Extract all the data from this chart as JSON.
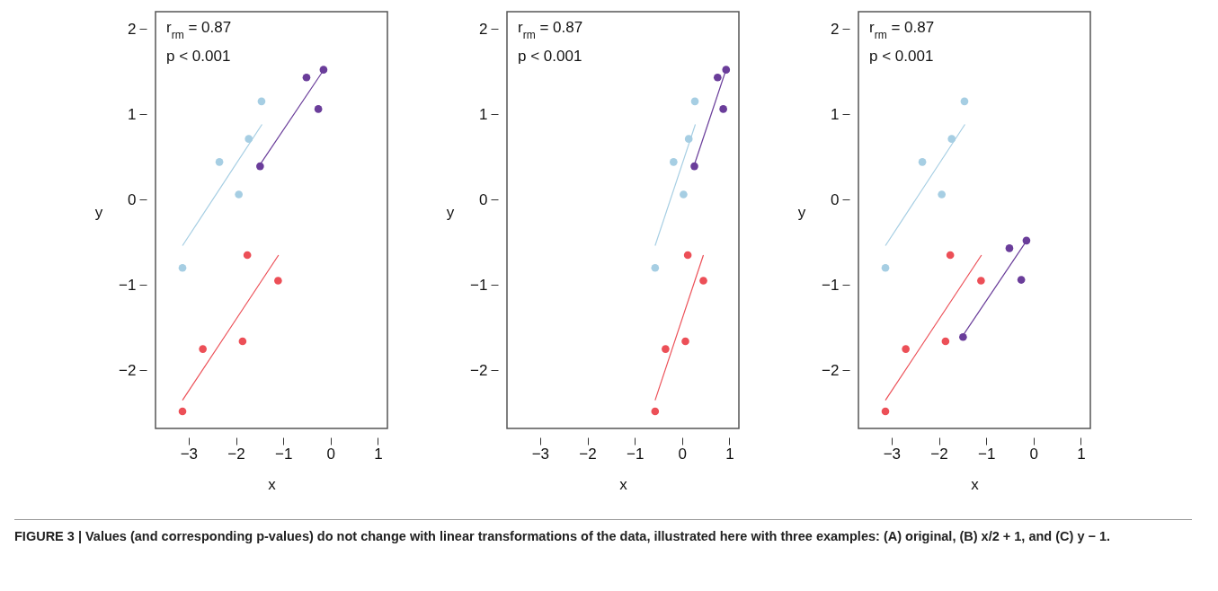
{
  "chart_data": [
    {
      "type": "scatter",
      "xlabel": "x",
      "ylabel": "y",
      "xlim": [
        -3.7,
        1.2
      ],
      "ylim": [
        -2.68,
        2.2
      ],
      "xticks": [
        -3,
        -2,
        -1,
        0,
        1
      ],
      "yticks": [
        -2,
        -1,
        0,
        1,
        2
      ],
      "annotations": [
        "r$_{rm}$ = 0.87",
        "p < 0.001"
      ],
      "series": [
        {
          "type": "scatter",
          "marker": "circle",
          "color": "#a6cee3",
          "x": [
            -3.13,
            -2.35,
            -1.94,
            -1.73,
            -1.46
          ],
          "values": [
            -0.8,
            0.44,
            0.06,
            0.71,
            1.15
          ]
        },
        {
          "type": "scatter",
          "marker": "circle",
          "color": "#6a3d9a",
          "x": [
            -1.49,
            -0.51,
            -0.26,
            -0.15
          ],
          "values": [
            0.39,
            1.43,
            1.06,
            1.52
          ]
        },
        {
          "type": "scatter",
          "marker": "circle",
          "color": "#ec4f57",
          "x": [
            -3.13,
            -2.7,
            -1.86,
            -1.76,
            -1.11
          ],
          "values": [
            -2.48,
            -1.75,
            -1.66,
            -0.65,
            -0.95
          ]
        },
        {
          "type": "line",
          "color": "#a6cee3",
          "x": [
            -3.13,
            -1.45
          ],
          "values": [
            -0.54,
            0.88
          ]
        },
        {
          "type": "line",
          "color": "#6a3d9a",
          "x": [
            -1.49,
            -0.18
          ],
          "values": [
            0.41,
            1.49
          ]
        },
        {
          "type": "line",
          "color": "#ec4f57",
          "x": [
            -3.13,
            -1.1
          ],
          "values": [
            -2.35,
            -0.65
          ]
        }
      ]
    },
    {
      "type": "scatter",
      "xlabel": "x",
      "ylabel": "y",
      "xlim": [
        -3.7,
        1.2
      ],
      "ylim": [
        -2.68,
        2.2
      ],
      "xticks": [
        -3,
        -2,
        -1,
        0,
        1
      ],
      "yticks": [
        -2,
        -1,
        0,
        1,
        2
      ],
      "annotations": [
        "r$_{rm}$ = 0.87",
        "p < 0.001"
      ],
      "series": [
        {
          "type": "scatter",
          "marker": "circle",
          "color": "#a6cee3",
          "x": [
            -0.57,
            -0.18,
            0.03,
            0.14,
            0.27
          ],
          "values": [
            -0.8,
            0.44,
            0.06,
            0.71,
            1.15
          ]
        },
        {
          "type": "scatter",
          "marker": "circle",
          "color": "#6a3d9a",
          "x": [
            0.26,
            0.75,
            0.87,
            0.93
          ],
          "values": [
            0.39,
            1.43,
            1.06,
            1.52
          ]
        },
        {
          "type": "scatter",
          "marker": "circle",
          "color": "#ec4f57",
          "x": [
            -0.57,
            -0.35,
            0.07,
            0.12,
            0.45
          ],
          "values": [
            -2.48,
            -1.75,
            -1.66,
            -0.65,
            -0.95
          ]
        },
        {
          "type": "line",
          "color": "#a6cee3",
          "x": [
            -0.57,
            0.28
          ],
          "values": [
            -0.54,
            0.88
          ]
        },
        {
          "type": "line",
          "color": "#6a3d9a",
          "x": [
            0.26,
            0.91
          ],
          "values": [
            0.41,
            1.49
          ]
        },
        {
          "type": "line",
          "color": "#ec4f57",
          "x": [
            -0.57,
            0.45
          ],
          "values": [
            -2.35,
            -0.65
          ]
        }
      ]
    },
    {
      "type": "scatter",
      "xlabel": "x",
      "ylabel": "y",
      "xlim": [
        -3.7,
        1.2
      ],
      "ylim": [
        -2.68,
        2.2
      ],
      "xticks": [
        -3,
        -2,
        -1,
        0,
        1
      ],
      "yticks": [
        -2,
        -1,
        0,
        1,
        2
      ],
      "annotations": [
        "r$_{rm}$ = 0.87",
        "p < 0.001"
      ],
      "series": [
        {
          "type": "scatter",
          "marker": "circle",
          "color": "#a6cee3",
          "x": [
            -3.13,
            -2.35,
            -1.94,
            -1.73,
            -1.46
          ],
          "values": [
            -0.8,
            0.44,
            0.06,
            0.71,
            1.15
          ]
        },
        {
          "type": "scatter",
          "marker": "circle",
          "color": "#6a3d9a",
          "x": [
            -1.49,
            -0.51,
            -0.26,
            -0.15
          ],
          "values": [
            -1.61,
            -0.57,
            -0.94,
            -0.48
          ]
        },
        {
          "type": "scatter",
          "marker": "circle",
          "color": "#ec4f57",
          "x": [
            -3.13,
            -2.7,
            -1.86,
            -1.76,
            -1.11
          ],
          "values": [
            -2.48,
            -1.75,
            -1.66,
            -0.65,
            -0.95
          ]
        },
        {
          "type": "line",
          "color": "#a6cee3",
          "x": [
            -3.13,
            -1.45
          ],
          "values": [
            -0.54,
            0.88
          ]
        },
        {
          "type": "line",
          "color": "#6a3d9a",
          "x": [
            -1.49,
            -0.18
          ],
          "values": [
            -1.59,
            -0.51
          ]
        },
        {
          "type": "line",
          "color": "#ec4f57",
          "x": [
            -3.13,
            -1.1
          ],
          "values": [
            -2.35,
            -0.65
          ]
        }
      ]
    },
    {
      "type": "other",
      "annotations": [
        "FIGURE 3 | Values (and corresponding p-values) do not change with linear transformations of the data, illustrated here with three examples: (A) original, (B) x/2 + 1, and (C) y − 1."
      ]
    }
  ]
}
